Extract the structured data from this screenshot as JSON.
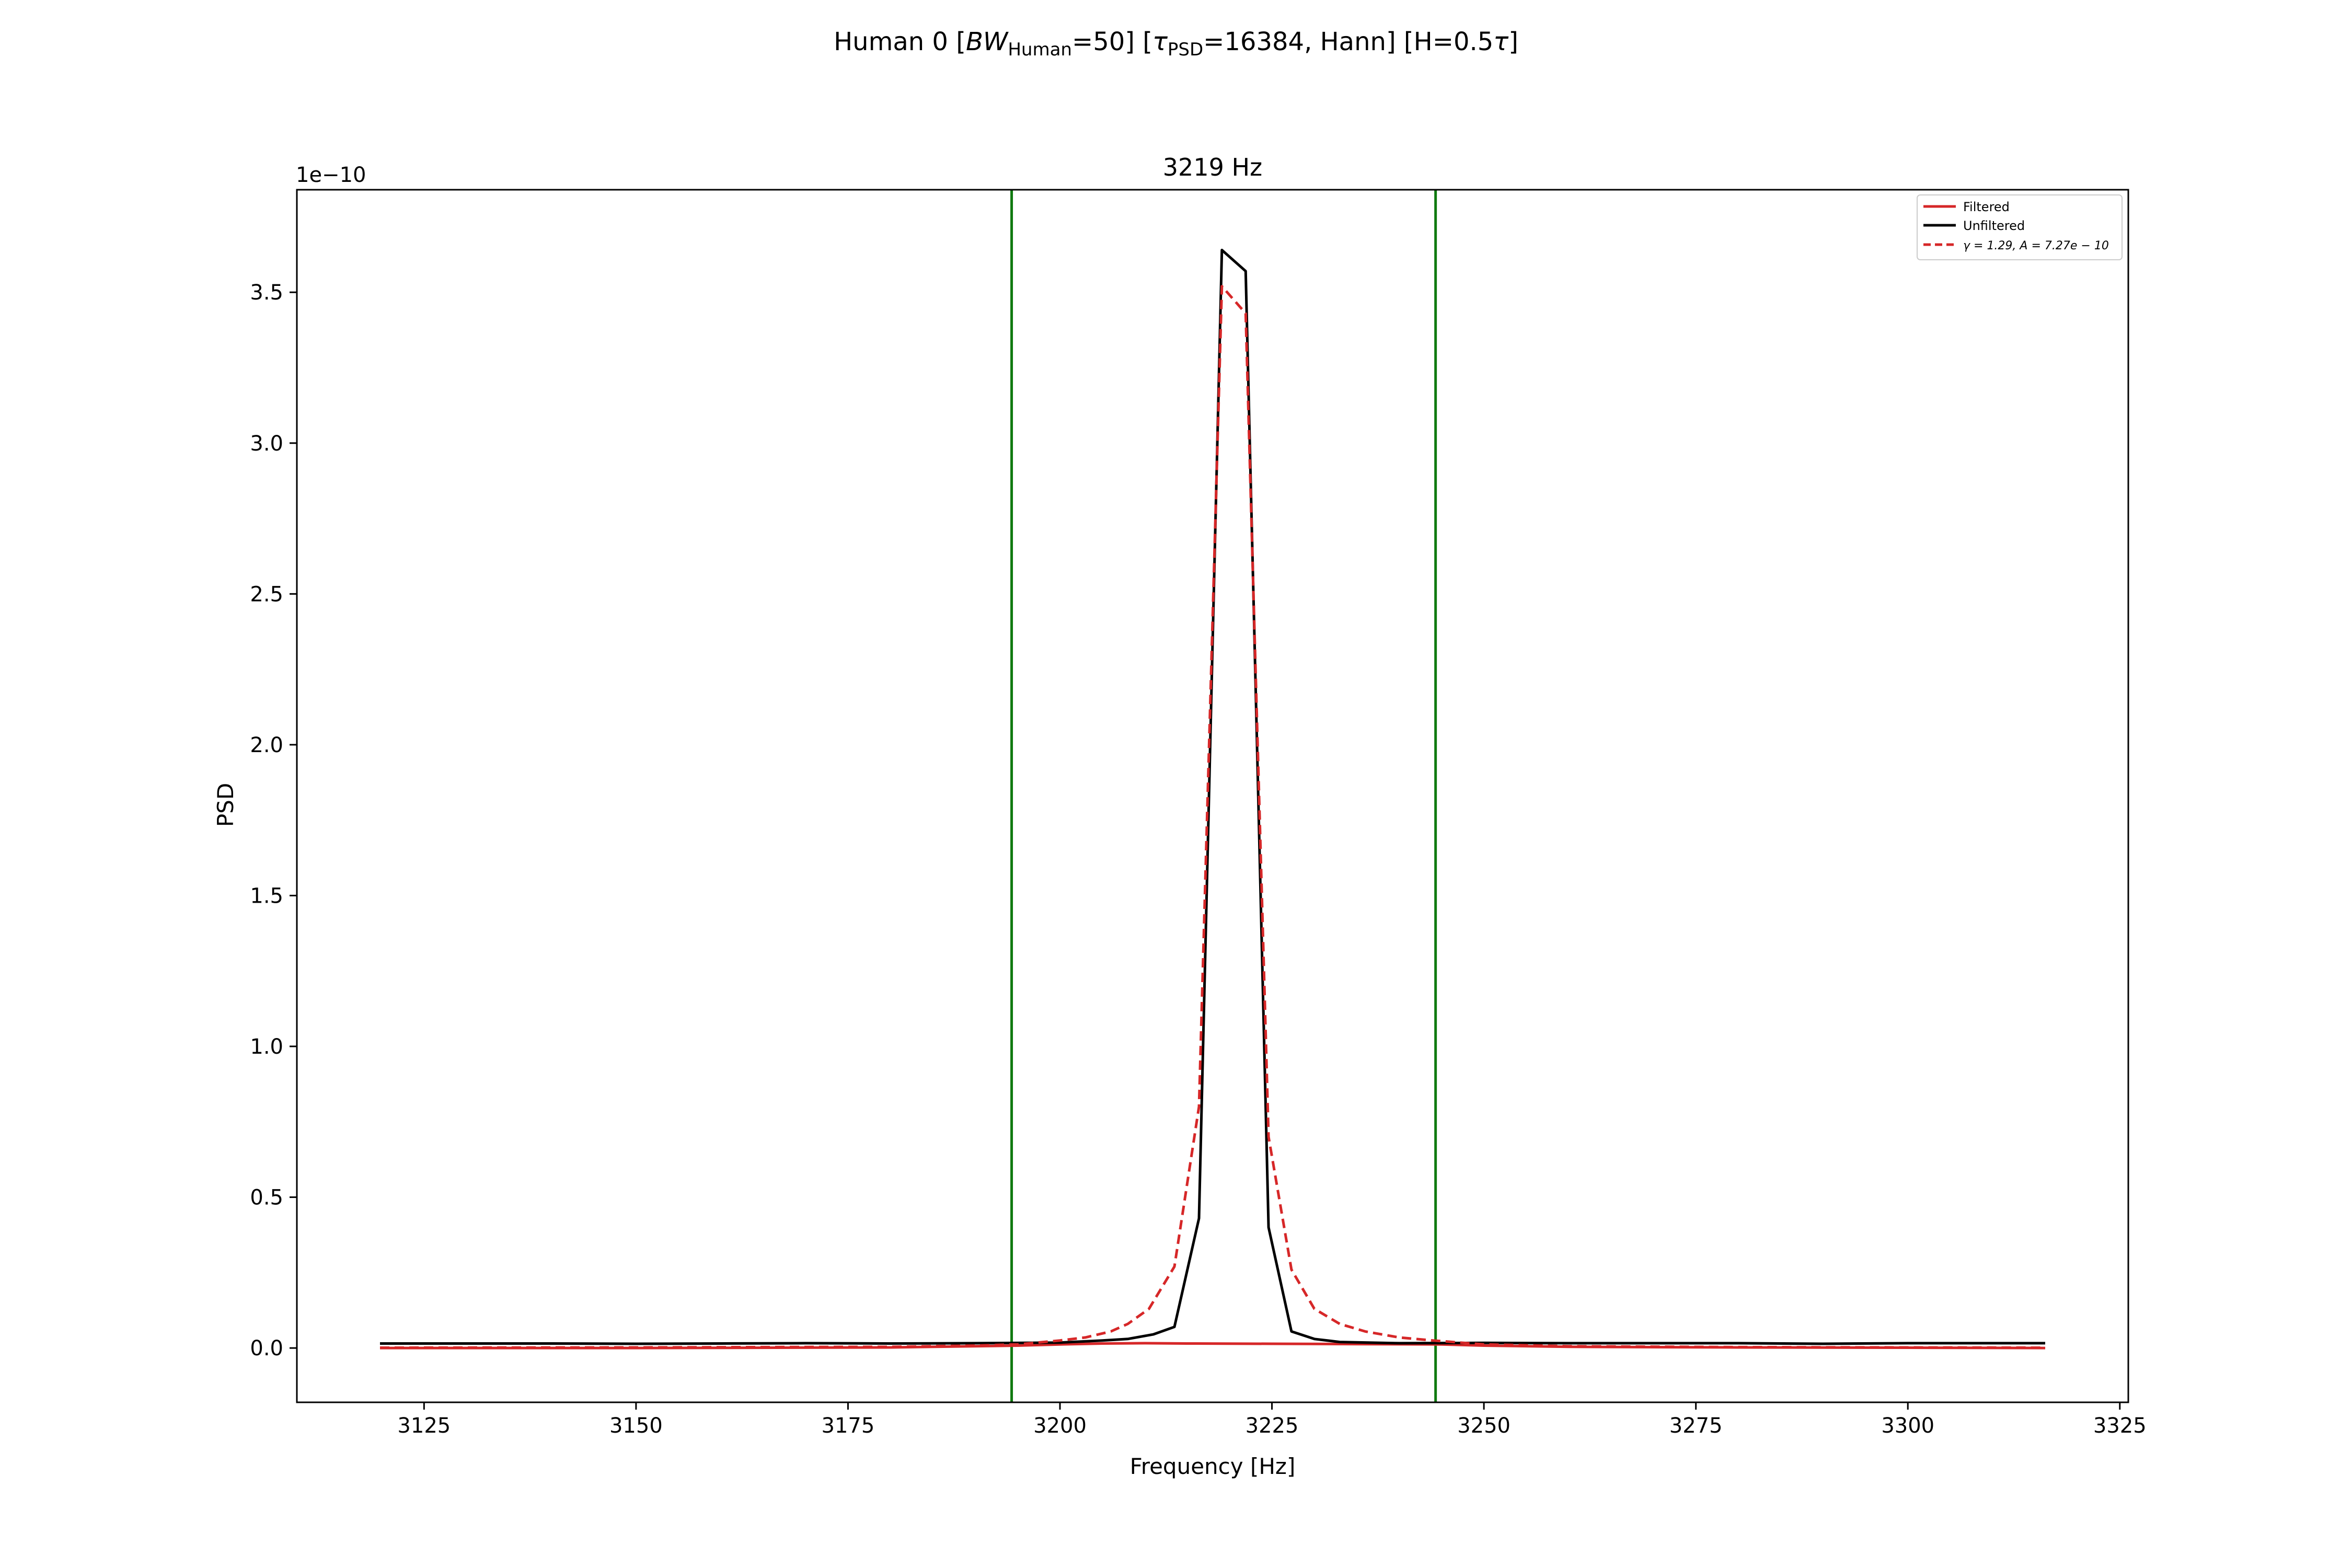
{
  "figure": {
    "suptitle": {
      "part1": "Human 0    [",
      "bw_sym": "BW",
      "bw_sub": "Human",
      "part2": "=50]   [",
      "tau_sym": "τ",
      "tau_sub": "PSD",
      "part3": "=16384, Hann]   [H=0.5",
      "tau2_sym": "τ",
      "part4": "]"
    }
  },
  "colors": {
    "filtered": "#d62728",
    "unfiltered": "#000000",
    "fit": "#d62728",
    "vline": "#107a10",
    "axes": "#000000",
    "background": "#ffffff"
  },
  "chart_data": {
    "type": "line",
    "title": "3219 Hz",
    "xlabel": "Frequency [Hz]",
    "ylabel": "PSD",
    "y_offset_text": "1e−10",
    "xlim": [
      3110,
      3326
    ],
    "ylim": [
      -0.18,
      3.84
    ],
    "grid": false,
    "legend_position": "top-right",
    "xticks": [
      3125,
      3150,
      3175,
      3200,
      3225,
      3250,
      3275,
      3300,
      3325
    ],
    "yticks": [
      0.0,
      0.5,
      1.0,
      1.5,
      2.0,
      2.5,
      3.0,
      3.5
    ],
    "ytick_labels": [
      "0.0",
      "0.5",
      "1.0",
      "1.5",
      "2.0",
      "2.5",
      "3.0",
      "3.5"
    ],
    "vlines": [
      3194.3,
      3244.3
    ],
    "series": [
      {
        "name": "Filtered",
        "style": "solid",
        "x": [
          3119.8,
          3150,
          3180,
          3195,
          3200,
          3205,
          3210,
          3215,
          3225,
          3235,
          3245,
          3250,
          3260,
          3280,
          3300,
          3316.2
        ],
        "y": [
          0.0,
          0.0,
          0.002,
          0.008,
          0.012,
          0.015,
          0.016,
          0.015,
          0.014,
          0.013,
          0.012,
          0.008,
          0.004,
          0.002,
          0.001,
          0.0
        ]
      },
      {
        "name": "Unfiltered",
        "style": "solid",
        "x": [
          3119.8,
          3130,
          3140,
          3150,
          3160,
          3170,
          3180,
          3190,
          3200,
          3205,
          3208,
          3211,
          3213.5,
          3216.4,
          3219.1,
          3221.9,
          3224.6,
          3227.3,
          3230,
          3233,
          3240,
          3250,
          3260,
          3270,
          3280,
          3290,
          3300,
          3310,
          3316.2
        ],
        "y": [
          0.015,
          0.015,
          0.015,
          0.014,
          0.015,
          0.016,
          0.015,
          0.016,
          0.018,
          0.025,
          0.03,
          0.045,
          0.07,
          0.43,
          3.64,
          3.57,
          0.4,
          0.055,
          0.03,
          0.02,
          0.016,
          0.017,
          0.016,
          0.016,
          0.016,
          0.014,
          0.016,
          0.016,
          0.016
        ]
      },
      {
        "name": "γ = 1.29, A = 7.27e − 10",
        "style": "dashed",
        "x": [
          3119.8,
          3150,
          3180,
          3190,
          3195,
          3200,
          3203,
          3206,
          3208,
          3210.5,
          3213.5,
          3216.4,
          3219.1,
          3221.9,
          3224.6,
          3227.3,
          3230,
          3233,
          3236,
          3240,
          3244,
          3250,
          3260,
          3280,
          3316.2
        ],
        "y": [
          0.001,
          0.002,
          0.004,
          0.008,
          0.012,
          0.025,
          0.035,
          0.055,
          0.08,
          0.13,
          0.27,
          0.8,
          3.52,
          3.43,
          0.7,
          0.26,
          0.13,
          0.08,
          0.055,
          0.035,
          0.025,
          0.012,
          0.006,
          0.003,
          0.001
        ]
      }
    ]
  }
}
